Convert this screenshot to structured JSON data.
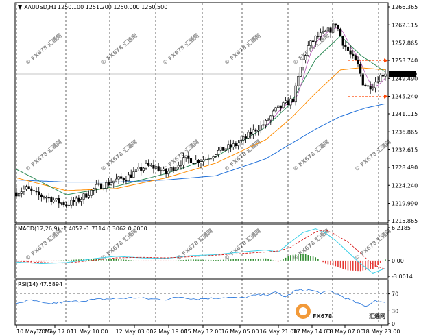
{
  "chart_data": [
    {
      "id": "price",
      "type": "candlestick",
      "header": {
        "symbol": "XAUUSD,H1",
        "ohlc": "1250.100 1251.200 1250.000 1250.500"
      },
      "ylim": [
        1215.865,
        1266.365
      ],
      "y_ticks": [
        "1266.365",
        "1262.115",
        "1257.865",
        "1253.740",
        "1249.490",
        "1245.240",
        "1241.115",
        "1236.865",
        "1232.615",
        "1228.490",
        "1224.240",
        "1219.990",
        "1215.865"
      ],
      "current_price": 1250.5,
      "current_price_label": "1250.500",
      "x_labels": [
        "10 May 2017",
        "10 May 17:00",
        "11 May 10:00",
        "12 May 03:00",
        "12 May 19:00",
        "15 May 12:00",
        "16 May 05:00",
        "16 May 21:00",
        "17 May 14:00",
        "18 May 07:00",
        "18 May 23:00"
      ],
      "anchors_close": [
        [
          0,
          1222.5
        ],
        [
          4,
          1223.5
        ],
        [
          8,
          1222.0
        ],
        [
          12,
          1221.5
        ],
        [
          16,
          1220.5
        ],
        [
          20,
          1219.8
        ],
        [
          24,
          1220.5
        ],
        [
          28,
          1222.0
        ],
        [
          32,
          1223.8
        ],
        [
          36,
          1224.5
        ],
        [
          40,
          1225.5
        ],
        [
          44,
          1226.0
        ],
        [
          48,
          1227.5
        ],
        [
          52,
          1228.8
        ],
        [
          56,
          1228.5
        ],
        [
          60,
          1227.0
        ],
        [
          64,
          1229.0
        ],
        [
          68,
          1230.5
        ],
        [
          72,
          1230.0
        ],
        [
          76,
          1230.5
        ],
        [
          80,
          1232.0
        ],
        [
          84,
          1233.0
        ],
        [
          88,
          1233.8
        ],
        [
          92,
          1235.5
        ],
        [
          96,
          1237.5
        ],
        [
          100,
          1239.0
        ],
        [
          104,
          1242.0
        ],
        [
          108,
          1243.5
        ],
        [
          111,
          1244.5
        ],
        [
          114,
          1252.0
        ],
        [
          117,
          1257.0
        ],
        [
          120,
          1259.0
        ],
        [
          123,
          1260.0
        ],
        [
          126,
          1261.0
        ],
        [
          128,
          1262.5
        ],
        [
          131,
          1258.0
        ],
        [
          134,
          1255.0
        ],
        [
          137,
          1252.5
        ],
        [
          139,
          1248.5
        ],
        [
          141,
          1247.5
        ],
        [
          143,
          1248.0
        ],
        [
          145,
          1249.5
        ],
        [
          147,
          1250.5
        ],
        [
          148,
          1250.5
        ]
      ],
      "ma_fast": [
        [
          0,
          1228.0
        ],
        [
          20,
          1222.0
        ],
        [
          40,
          1224.0
        ],
        [
          60,
          1227.0
        ],
        [
          80,
          1231.0
        ],
        [
          100,
          1238.0
        ],
        [
          110,
          1243.5
        ],
        [
          120,
          1254.0
        ],
        [
          130,
          1259.5
        ],
        [
          138,
          1255.0
        ],
        [
          148,
          1251.0
        ]
      ],
      "ma_mid": [
        [
          0,
          1226.0
        ],
        [
          20,
          1223.0
        ],
        [
          40,
          1223.5
        ],
        [
          60,
          1226.0
        ],
        [
          80,
          1229.5
        ],
        [
          100,
          1235.0
        ],
        [
          110,
          1240.0
        ],
        [
          120,
          1246.0
        ],
        [
          130,
          1251.5
        ],
        [
          138,
          1252.0
        ],
        [
          148,
          1251.5
        ]
      ],
      "ma_slow": [
        [
          0,
          1225.5
        ],
        [
          20,
          1225.0
        ],
        [
          40,
          1225.0
        ],
        [
          60,
          1225.5
        ],
        [
          80,
          1226.5
        ],
        [
          100,
          1230.5
        ],
        [
          110,
          1234.0
        ],
        [
          120,
          1237.5
        ],
        [
          130,
          1240.5
        ],
        [
          140,
          1242.5
        ],
        [
          148,
          1243.5
        ]
      ],
      "horizontal_line": 1250.5,
      "fib_arrows": [
        1253.7,
        1245.2
      ],
      "series_colors": {
        "ma_fast": "#2e8b57",
        "ma_mid": "#ff8c00",
        "ma_slow": "#1e6fd9",
        "fast_overlay": "#b455b4"
      }
    },
    {
      "id": "macd",
      "type": "histogram-line",
      "label": "MACD(12,26,9) -1.4052 -1.7114 0.3062 0.0000",
      "ylim": [
        -3.0014,
        6.2185
      ],
      "y_ticks": [
        "6.2185",
        "0.00",
        "-3.0014"
      ],
      "hist_colors": {
        "positive": "#2e8b2e",
        "negative": "#e53935"
      },
      "macd_anchors": [
        [
          0,
          -0.3
        ],
        [
          10,
          -0.6
        ],
        [
          20,
          -0.4
        ],
        [
          30,
          0.3
        ],
        [
          40,
          0.8
        ],
        [
          50,
          0.5
        ],
        [
          60,
          0.4
        ],
        [
          70,
          0.9
        ],
        [
          80,
          1.1
        ],
        [
          90,
          1.6
        ],
        [
          100,
          2.0
        ],
        [
          105,
          1.6
        ],
        [
          110,
          3.5
        ],
        [
          115,
          5.3
        ],
        [
          120,
          6.0
        ],
        [
          124,
          5.2
        ],
        [
          128,
          3.8
        ],
        [
          133,
          1.6
        ],
        [
          138,
          -0.6
        ],
        [
          143,
          -2.4
        ],
        [
          148,
          -1.5
        ]
      ],
      "signal_anchors": [
        [
          0,
          -0.1
        ],
        [
          10,
          -0.4
        ],
        [
          20,
          -0.5
        ],
        [
          30,
          0.0
        ],
        [
          40,
          0.5
        ],
        [
          50,
          0.6
        ],
        [
          60,
          0.5
        ],
        [
          70,
          0.7
        ],
        [
          80,
          1.0
        ],
        [
          90,
          1.3
        ],
        [
          100,
          1.6
        ],
        [
          105,
          1.8
        ],
        [
          110,
          2.5
        ],
        [
          115,
          4.0
        ],
        [
          120,
          5.4
        ],
        [
          124,
          5.8
        ],
        [
          128,
          4.9
        ],
        [
          133,
          3.5
        ],
        [
          138,
          1.4
        ],
        [
          143,
          -0.8
        ],
        [
          148,
          -1.7
        ]
      ],
      "colors": {
        "macd": "#3ad0e8",
        "signal": "#d81b1b"
      }
    },
    {
      "id": "rsi",
      "type": "line",
      "label": "RSI(14) 47.5894",
      "ylim": [
        0,
        100
      ],
      "y_ticks": [
        "70",
        "30",
        "0"
      ],
      "levels": [
        70,
        30
      ],
      "anchors": [
        [
          0,
          48
        ],
        [
          6,
          55
        ],
        [
          12,
          46
        ],
        [
          18,
          50
        ],
        [
          24,
          52
        ],
        [
          30,
          56
        ],
        [
          36,
          58
        ],
        [
          42,
          60
        ],
        [
          48,
          61
        ],
        [
          54,
          58
        ],
        [
          60,
          57
        ],
        [
          66,
          63
        ],
        [
          72,
          58
        ],
        [
          78,
          60
        ],
        [
          84,
          62
        ],
        [
          90,
          60
        ],
        [
          96,
          67
        ],
        [
          100,
          68
        ],
        [
          104,
          73
        ],
        [
          108,
          63
        ],
        [
          112,
          78
        ],
        [
          118,
          79
        ],
        [
          122,
          72
        ],
        [
          126,
          76
        ],
        [
          130,
          66
        ],
        [
          136,
          50
        ],
        [
          140,
          40
        ],
        [
          144,
          55
        ],
        [
          148,
          47.6
        ]
      ],
      "color": "#1e6fd9"
    }
  ],
  "watermark": {
    "brand": "FX678",
    "cn": "汇通网"
  }
}
